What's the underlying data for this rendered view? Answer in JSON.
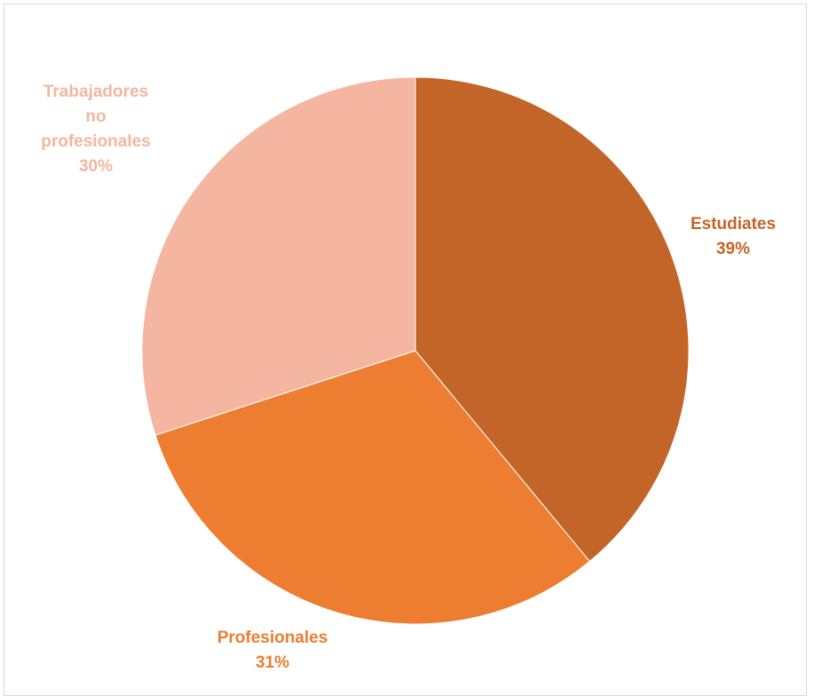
{
  "chart_data": {
    "type": "pie",
    "categories": [
      "Estudiates",
      "Profesionales",
      "Trabajadores no profesionales"
    ],
    "values": [
      39,
      31,
      30
    ],
    "value_labels": [
      "39%",
      "31%",
      "30%"
    ],
    "colors": [
      "#c36528",
      "#ed7d31",
      "#f4b6a0"
    ],
    "label_colors": [
      "#c36528",
      "#ed7d31",
      "#f4b6a0"
    ],
    "start_angle_deg": 0,
    "direction": "clockwise",
    "legend": "none",
    "title": ""
  }
}
